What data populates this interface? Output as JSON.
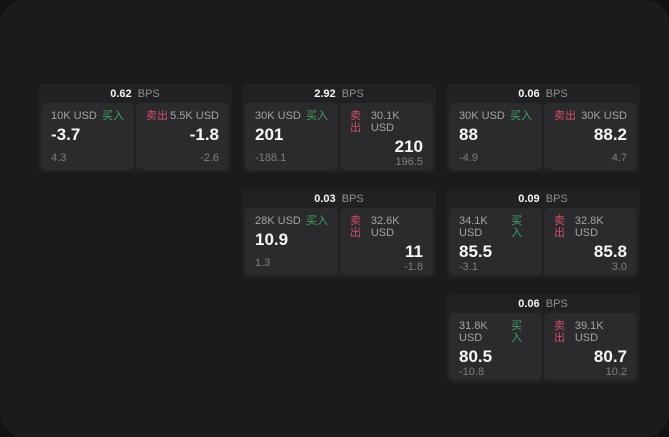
{
  "labels": {
    "bps_suffix": "BPS",
    "buy": "买入",
    "sell": "卖出"
  },
  "colors": {
    "buy": "#3fa468",
    "sell": "#cf4f6b"
  },
  "cards": [
    {
      "row": 1,
      "col": 1,
      "bps": "0.62",
      "buy": {
        "amount": "10K USD",
        "big": "-3.7",
        "small": "4.3"
      },
      "sell": {
        "amount": "5.5K USD",
        "big": "-1.8",
        "small": "-2.6"
      }
    },
    {
      "row": 1,
      "col": 2,
      "bps": "2.92",
      "buy": {
        "amount": "30K USD",
        "big": "201",
        "small": "-188.1"
      },
      "sell": {
        "amount": "30.1K USD",
        "big": "210",
        "small": "196.5"
      }
    },
    {
      "row": 1,
      "col": 3,
      "bps": "0.06",
      "buy": {
        "amount": "30K USD",
        "big": "88",
        "small": "-4.9"
      },
      "sell": {
        "amount": "30K USD",
        "big": "88.2",
        "small": "4.7"
      }
    },
    {
      "row": 2,
      "col": 2,
      "bps": "0.03",
      "buy": {
        "amount": "28K USD",
        "big": "10.9",
        "small": "1.3"
      },
      "sell": {
        "amount": "32.6K USD",
        "big": "11",
        "small": "-1.8"
      }
    },
    {
      "row": 2,
      "col": 3,
      "bps": "0.09",
      "buy": {
        "amount": "34.1K USD",
        "big": "85.5",
        "small": "-3.1"
      },
      "sell": {
        "amount": "32.8K USD",
        "big": "85.8",
        "small": "3.0"
      }
    },
    {
      "row": 3,
      "col": 3,
      "bps": "0.06",
      "buy": {
        "amount": "31.8K USD",
        "big": "80.5",
        "small": "-10.8"
      },
      "sell": {
        "amount": "39.1K USD",
        "big": "80.7",
        "small": "10.2"
      }
    }
  ]
}
